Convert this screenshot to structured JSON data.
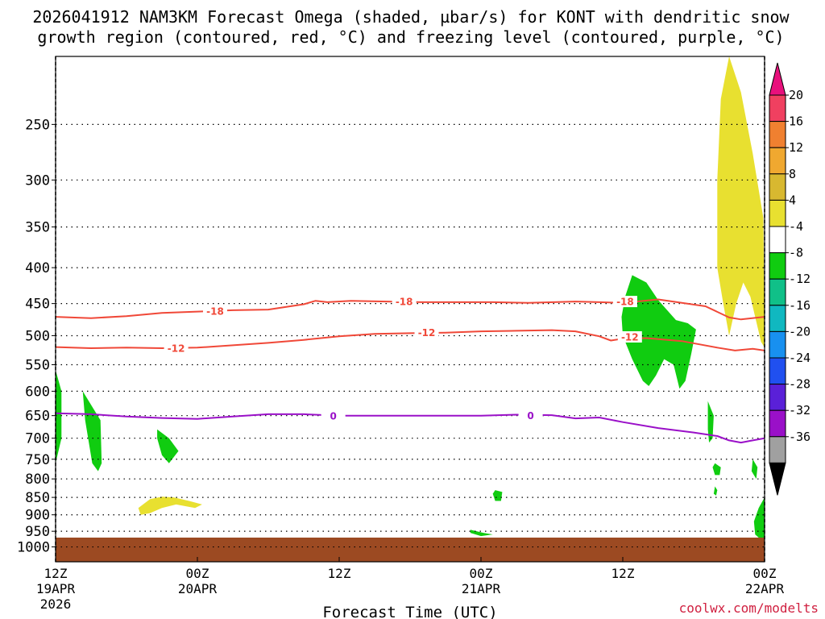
{
  "title_line1": "2026041912 NAM3KM Forecast Omega (shaded, µbar/s) for KONT with dendritic snow",
  "title_line2": "growth region (contoured, red, °C) and freezing level (contoured, purple, °C)",
  "credit": "coolwx.com/modelts",
  "colors": {
    "dendritic": "#f04838",
    "freezing": "#9a10c8",
    "ground": "#9c4a22",
    "rising": "#10cc10",
    "sinking": "#e8e030"
  },
  "chart_data": {
    "type": "heatmap",
    "xlabel": "Forecast Time (UTC)",
    "x_ticks": [
      {
        "hour": 0,
        "l1": "12Z",
        "l2": "19APR",
        "l3": "2026"
      },
      {
        "hour": 12,
        "l1": "00Z",
        "l2": "20APR",
        "l3": ""
      },
      {
        "hour": 24,
        "l1": "12Z",
        "l2": "",
        "l3": ""
      },
      {
        "hour": 36,
        "l1": "00Z",
        "l2": "21APR",
        "l3": ""
      },
      {
        "hour": 48,
        "l1": "12Z",
        "l2": "",
        "l3": ""
      },
      {
        "hour": 60,
        "l1": "00Z",
        "l2": "22APR",
        "l3": ""
      }
    ],
    "xlim": [
      0,
      60
    ],
    "y_ticks": [
      250,
      300,
      350,
      400,
      450,
      500,
      550,
      600,
      650,
      700,
      750,
      800,
      850,
      900,
      950,
      1000
    ],
    "ylim": [
      1050,
      200
    ],
    "y_scale": "log-pressure",
    "colorbar": {
      "labels": [
        "20",
        "16",
        "12",
        "8",
        "4",
        "-4",
        "-8",
        "-12",
        "-16",
        "-20",
        "-24",
        "-28",
        "-32",
        "-36"
      ],
      "colors": [
        "#f04060",
        "#f08030",
        "#f0a830",
        "#d8b830",
        "#e8e030",
        "#ffffff",
        "#10cc10",
        "#10c088",
        "#10b8c0",
        "#1890f0",
        "#2050f0",
        "#5a20d8",
        "#9a10c8",
        "#a0a0a0"
      ],
      "top_arrow": "#e8107c",
      "bottom_arrow": "#000000"
    },
    "contours": [
      {
        "label": "-18",
        "color": "#f04838",
        "points": [
          [
            0,
            470
          ],
          [
            3,
            472
          ],
          [
            6,
            469
          ],
          [
            9,
            464
          ],
          [
            12,
            462
          ],
          [
            15,
            460
          ],
          [
            18,
            459
          ],
          [
            21,
            451
          ],
          [
            22,
            446
          ],
          [
            23,
            448
          ],
          [
            25,
            446
          ],
          [
            28,
            447
          ],
          [
            31,
            448
          ],
          [
            34,
            448
          ],
          [
            37,
            448
          ],
          [
            40,
            449
          ],
          [
            44,
            447
          ],
          [
            46,
            448
          ],
          [
            48,
            449
          ],
          [
            51,
            444
          ],
          [
            55,
            454
          ],
          [
            57,
            471
          ],
          [
            58,
            474
          ],
          [
            60,
            470
          ]
        ],
        "label_at": [
          [
            13.5,
            461
          ],
          [
            29.5,
            447
          ],
          [
            48.2,
            447
          ]
        ]
      },
      {
        "label": "-12",
        "color": "#f04838",
        "points": [
          [
            0,
            519
          ],
          [
            3,
            521
          ],
          [
            6,
            520
          ],
          [
            9,
            521
          ],
          [
            12,
            520
          ],
          [
            15,
            516
          ],
          [
            18,
            512
          ],
          [
            21,
            507
          ],
          [
            24,
            501
          ],
          [
            27,
            497
          ],
          [
            30,
            496
          ],
          [
            33,
            495
          ],
          [
            36,
            493
          ],
          [
            39,
            492
          ],
          [
            42,
            491
          ],
          [
            44,
            493
          ],
          [
            46,
            501
          ],
          [
            47,
            508
          ],
          [
            48,
            505
          ],
          [
            50,
            504
          ],
          [
            53,
            509
          ],
          [
            56,
            520
          ],
          [
            57.5,
            525
          ],
          [
            59,
            522
          ],
          [
            60,
            525
          ]
        ],
        "label_at": [
          [
            10.2,
            521
          ],
          [
            31.4,
            495
          ],
          [
            48.6,
            502
          ]
        ]
      },
      {
        "label": "0",
        "color": "#9a10c8",
        "points": [
          [
            0,
            645
          ],
          [
            3,
            647
          ],
          [
            6,
            652
          ],
          [
            9,
            655
          ],
          [
            12,
            657
          ],
          [
            15,
            652
          ],
          [
            18,
            647
          ],
          [
            21,
            647
          ],
          [
            24,
            650
          ],
          [
            27,
            650
          ],
          [
            30,
            650
          ],
          [
            33,
            650
          ],
          [
            36,
            650
          ],
          [
            39,
            648
          ],
          [
            42,
            649
          ],
          [
            44,
            656
          ],
          [
            46,
            654
          ],
          [
            48,
            664
          ],
          [
            51,
            677
          ],
          [
            54,
            687
          ],
          [
            56,
            695
          ],
          [
            57,
            705
          ],
          [
            58,
            710
          ],
          [
            59,
            705
          ],
          [
            60,
            700
          ]
        ],
        "label_at": [
          [
            23.5,
            651
          ],
          [
            40.2,
            650
          ]
        ]
      }
    ],
    "shaded": [
      {
        "value": -8,
        "color": "#10cc10",
        "points": [
          [
            0,
            560
          ],
          [
            0.5,
            600
          ],
          [
            0.5,
            700
          ],
          [
            0,
            760
          ]
        ]
      },
      {
        "value": -8,
        "color": "#10cc10",
        "points": [
          [
            2.3,
            600
          ],
          [
            3.8,
            660
          ],
          [
            3.9,
            760
          ],
          [
            3.6,
            780
          ],
          [
            3.1,
            760
          ],
          [
            2.5,
            660
          ]
        ]
      },
      {
        "value": -8,
        "color": "#10cc10",
        "points": [
          [
            8.6,
            680
          ],
          [
            9.6,
            700
          ],
          [
            10.4,
            730
          ],
          [
            9.6,
            760
          ],
          [
            9.0,
            740
          ],
          [
            8.6,
            700
          ]
        ]
      },
      {
        "value": 4,
        "color": "#e8e030",
        "points": [
          [
            7.0,
            880
          ],
          [
            8.0,
            855
          ],
          [
            9.0,
            848
          ],
          [
            10.0,
            850
          ],
          [
            11.3,
            860
          ],
          [
            12.4,
            870
          ],
          [
            11.8,
            880
          ],
          [
            10.2,
            870
          ],
          [
            9.0,
            880
          ],
          [
            8.0,
            895
          ],
          [
            7.2,
            900
          ]
        ]
      },
      {
        "value": -8,
        "color": "#10cc10",
        "points": [
          [
            37.2,
            830
          ],
          [
            37.8,
            835
          ],
          [
            37.7,
            860
          ],
          [
            37.2,
            860
          ],
          [
            37.0,
            840
          ]
        ]
      },
      {
        "value": -8,
        "color": "#10cc10",
        "points": [
          [
            35.1,
            945
          ],
          [
            36.2,
            955
          ],
          [
            37.0,
            960
          ],
          [
            36.0,
            965
          ],
          [
            35.1,
            955
          ]
        ]
      },
      {
        "value": -8,
        "color": "#10cc10",
        "points": [
          [
            48.8,
            410
          ],
          [
            50.0,
            420
          ],
          [
            51.0,
            445
          ],
          [
            52.5,
            475
          ],
          [
            53.5,
            480
          ],
          [
            54.2,
            490
          ],
          [
            53.8,
            530
          ],
          [
            53.3,
            580
          ],
          [
            52.8,
            595
          ],
          [
            52.3,
            550
          ],
          [
            51.5,
            540
          ],
          [
            50.8,
            570
          ],
          [
            50.2,
            590
          ],
          [
            49.7,
            580
          ],
          [
            48.8,
            540
          ],
          [
            48.0,
            500
          ],
          [
            47.9,
            470
          ],
          [
            48.2,
            440
          ]
        ]
      },
      {
        "value": 4,
        "color": "#e8e030",
        "points": [
          [
            57.0,
            200
          ],
          [
            58.0,
            225
          ],
          [
            59.0,
            275
          ],
          [
            59.9,
            340
          ],
          [
            60.0,
            520
          ],
          [
            59.7,
            510
          ],
          [
            58.8,
            440
          ],
          [
            58.2,
            420
          ],
          [
            57.6,
            450
          ],
          [
            57.0,
            500
          ],
          [
            56.5,
            450
          ],
          [
            56.0,
            400
          ],
          [
            56.0,
            300
          ],
          [
            56.3,
            230
          ]
        ]
      },
      {
        "value": -8,
        "color": "#10cc10",
        "points": [
          [
            55.2,
            620
          ],
          [
            55.7,
            650
          ],
          [
            55.6,
            700
          ],
          [
            55.3,
            710
          ],
          [
            55.2,
            680
          ]
        ]
      },
      {
        "value": -8,
        "color": "#10cc10",
        "points": [
          [
            55.8,
            760
          ],
          [
            56.3,
            770
          ],
          [
            56.2,
            790
          ],
          [
            55.8,
            790
          ],
          [
            55.6,
            770
          ]
        ]
      },
      {
        "value": -8,
        "color": "#10cc10",
        "points": [
          [
            55.8,
            820
          ],
          [
            56.0,
            830
          ],
          [
            55.9,
            845
          ],
          [
            55.7,
            840
          ]
        ]
      },
      {
        "value": -8,
        "color": "#10cc10",
        "points": [
          [
            59.0,
            750
          ],
          [
            59.4,
            770
          ],
          [
            59.3,
            800
          ],
          [
            58.9,
            780
          ]
        ]
      },
      {
        "value": -8,
        "color": "#10cc10",
        "points": [
          [
            60.0,
            850
          ],
          [
            59.5,
            880
          ],
          [
            59.1,
            920
          ],
          [
            59.2,
            960
          ],
          [
            59.8,
            980
          ],
          [
            60.0,
            970
          ]
        ]
      }
    ],
    "ground_level_hpa": 970
  }
}
